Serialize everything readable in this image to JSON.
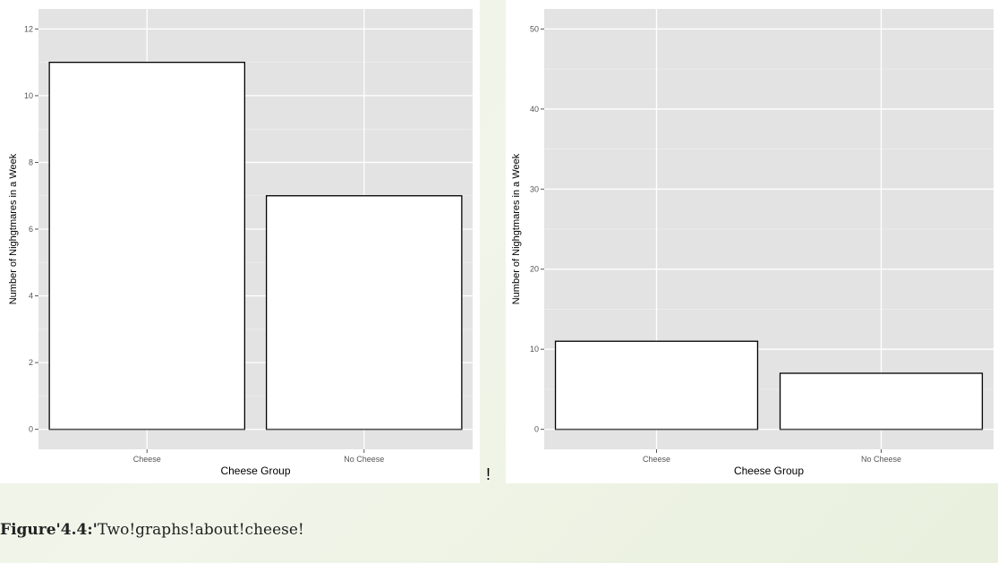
{
  "charts": [
    {
      "type": "bar",
      "categories": [
        "Cheese",
        "No Cheese"
      ],
      "values": [
        11,
        7
      ],
      "xlabel": "Cheese Group",
      "ylabel": "Number of Nighgtmares in a Week",
      "ylim": [
        -0.6,
        12.6
      ],
      "yticks": [
        0,
        2,
        4,
        6,
        8,
        10,
        12
      ],
      "grid": true
    },
    {
      "type": "bar",
      "categories": [
        "Cheese",
        "No Cheese"
      ],
      "values": [
        11,
        7
      ],
      "xlabel": "Cheese Group",
      "ylabel": "Number of Nighgtmares in a Week",
      "ylim": [
        -2.5,
        52.5
      ],
      "yticks": [
        0,
        10,
        20,
        30,
        40,
        50
      ],
      "grid": true
    }
  ],
  "separator_mark": "!",
  "caption": {
    "label": "Figure'4.4:'",
    "text": "Two!graphs!about!cheese!"
  }
}
